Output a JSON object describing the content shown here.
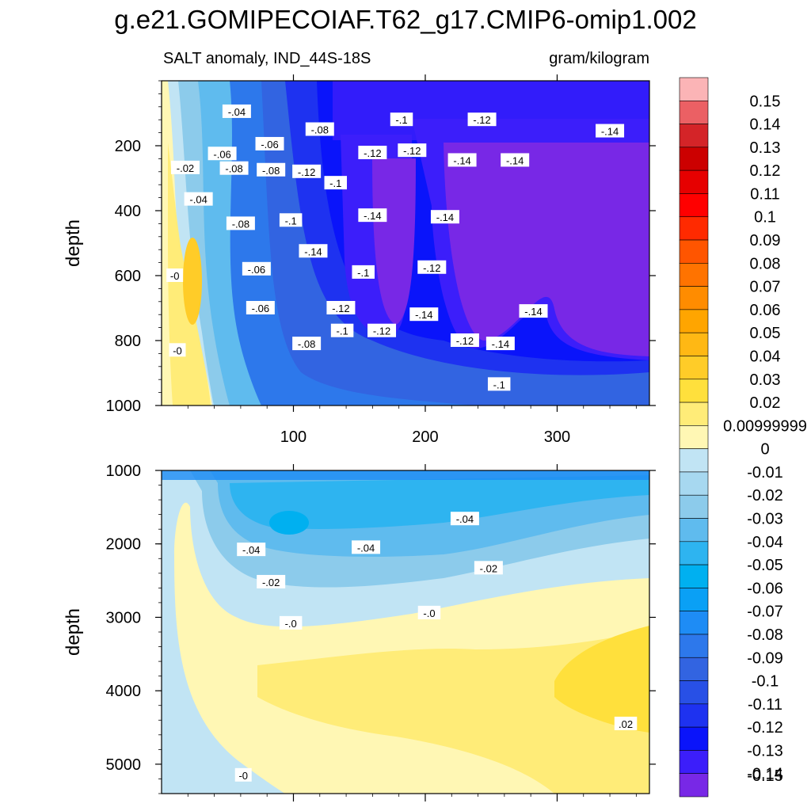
{
  "figure_title": "g.e21.GOMIPECOIAF.T62_g17.CMIP6-omip1.002",
  "colors": {
    "levels": [
      {
        "label": "0.15",
        "color": "#fbb4b6"
      },
      {
        "label": "0.14",
        "color": "#eb6064"
      },
      {
        "label": "0.13",
        "color": "#d42428"
      },
      {
        "label": "0.12",
        "color": "#cc0000"
      },
      {
        "label": "0.11",
        "color": "#e60000"
      },
      {
        "label": "0.1",
        "color": "#ff0000"
      },
      {
        "label": "0.09",
        "color": "#ff2a00"
      },
      {
        "label": "0.08",
        "color": "#ff5500"
      },
      {
        "label": "0.07",
        "color": "#ff7300"
      },
      {
        "label": "0.06",
        "color": "#ff8c00"
      },
      {
        "label": "0.05",
        "color": "#ffa500"
      },
      {
        "label": "0.04",
        "color": "#ffb814"
      },
      {
        "label": "0.03",
        "color": "#ffcc28"
      },
      {
        "label": "0.02",
        "color": "#ffe03c"
      },
      {
        "label": "0.00999999",
        "color": "#ffec78"
      },
      {
        "label": "0",
        "color": "#fff7b4"
      },
      {
        "label": "-0.01",
        "color": "#c1e4f4"
      },
      {
        "label": "-0.02",
        "color": "#a7d8f0"
      },
      {
        "label": "-0.03",
        "color": "#8ccbeb"
      },
      {
        "label": "-0.04",
        "color": "#5fbbee"
      },
      {
        "label": "-0.05",
        "color": "#2eb4f0"
      },
      {
        "label": "-0.06",
        "color": "#00b0f0"
      },
      {
        "label": "-0.07",
        "color": "#0aa0f5"
      },
      {
        "label": "-0.08",
        "color": "#1e8cf5"
      },
      {
        "label": "-0.09",
        "color": "#2d78eb"
      },
      {
        "label": "-0.1",
        "color": "#3264e1"
      },
      {
        "label": "-0.11",
        "color": "#2850e6"
      },
      {
        "label": "-0.12",
        "color": "#1e32f0"
      },
      {
        "label": "-0.13",
        "color": "#0a14fa"
      },
      {
        "label": "-0.14",
        "color": "#3c1efa"
      },
      {
        "label": "-0.15",
        "color": "#7828e6"
      }
    ]
  },
  "chart_data": [
    {
      "type": "heatmap",
      "subtype": "filled contour",
      "title": "SALT anomaly, IND_44S-18S",
      "units": "gram/kilogram",
      "xlabel": "",
      "ylabel": "depth",
      "xlim": [
        0,
        370
      ],
      "ylim": [
        0,
        1000
      ],
      "y_reversed": true,
      "xticks": [
        "100",
        "200",
        "300"
      ],
      "yticks": [
        "200",
        "400",
        "600",
        "800",
        "1000"
      ],
      "contour_labels": [
        {
          "text": "-.04",
          "x": 57,
          "y": 95
        },
        {
          "text": "-.06",
          "x": 46,
          "y": 225
        },
        {
          "text": "-.02",
          "x": 18,
          "y": 268
        },
        {
          "text": "-.04",
          "x": 28,
          "y": 365
        },
        {
          "text": "-0",
          "x": 10,
          "y": 600
        },
        {
          "text": "-0",
          "x": 12,
          "y": 830
        },
        {
          "text": "-.08",
          "x": 55,
          "y": 270
        },
        {
          "text": "-.08",
          "x": 60,
          "y": 440
        },
        {
          "text": "-.06",
          "x": 72,
          "y": 580
        },
        {
          "text": "-.06",
          "x": 75,
          "y": 700
        },
        {
          "text": "-.06",
          "x": 82,
          "y": 195
        },
        {
          "text": "-.08",
          "x": 83,
          "y": 275
        },
        {
          "text": "-.08",
          "x": 120,
          "y": 150
        },
        {
          "text": "-.12",
          "x": 110,
          "y": 280
        },
        {
          "text": "-.1",
          "x": 98,
          "y": 430
        },
        {
          "text": "-.1",
          "x": 132,
          "y": 315
        },
        {
          "text": "-.14",
          "x": 115,
          "y": 525
        },
        {
          "text": "-.12",
          "x": 136,
          "y": 700
        },
        {
          "text": "-.1",
          "x": 137,
          "y": 770
        },
        {
          "text": "-.08",
          "x": 110,
          "y": 810
        },
        {
          "text": "-.1",
          "x": 153,
          "y": 590
        },
        {
          "text": "-.12",
          "x": 160,
          "y": 222
        },
        {
          "text": "-.14",
          "x": 160,
          "y": 415
        },
        {
          "text": "-.12",
          "x": 167,
          "y": 770
        },
        {
          "text": "-.1",
          "x": 182,
          "y": 120
        },
        {
          "text": "-.12",
          "x": 190,
          "y": 215
        },
        {
          "text": "-.14",
          "x": 215,
          "y": 420
        },
        {
          "text": "-.12",
          "x": 205,
          "y": 575
        },
        {
          "text": "-.14",
          "x": 199,
          "y": 720
        },
        {
          "text": "-.14",
          "x": 228,
          "y": 245
        },
        {
          "text": "-.12",
          "x": 243,
          "y": 120
        },
        {
          "text": "-.12",
          "x": 230,
          "y": 800
        },
        {
          "text": "-.14",
          "x": 268,
          "y": 245
        },
        {
          "text": "-.14",
          "x": 257,
          "y": 810
        },
        {
          "text": "-.1",
          "x": 256,
          "y": 935
        },
        {
          "text": "-.14",
          "x": 282,
          "y": 710
        },
        {
          "text": "-.14",
          "x": 340,
          "y": 155
        }
      ]
    },
    {
      "type": "heatmap",
      "subtype": "filled contour",
      "title": "",
      "xlabel": "",
      "ylabel": "depth",
      "xlim": [
        0,
        370
      ],
      "ylim": [
        1000,
        5400
      ],
      "y_reversed": true,
      "xticks": [
        "",
        "",
        ""
      ],
      "yticks": [
        "1000",
        "2000",
        "3000",
        "4000",
        "5000"
      ],
      "contour_labels": [
        {
          "text": "-.04",
          "x": 68,
          "y": 2080
        },
        {
          "text": "-.04",
          "x": 155,
          "y": 2050
        },
        {
          "text": "-.04",
          "x": 230,
          "y": 1660
        },
        {
          "text": "-.02",
          "x": 83,
          "y": 2520
        },
        {
          "text": "-.02",
          "x": 248,
          "y": 2330
        },
        {
          "text": "-.0",
          "x": 98,
          "y": 3080
        },
        {
          "text": "-.0",
          "x": 203,
          "y": 2940
        },
        {
          "text": ".02",
          "x": 352,
          "y": 4450
        },
        {
          "text": "-0",
          "x": 62,
          "y": 5150
        }
      ]
    }
  ]
}
